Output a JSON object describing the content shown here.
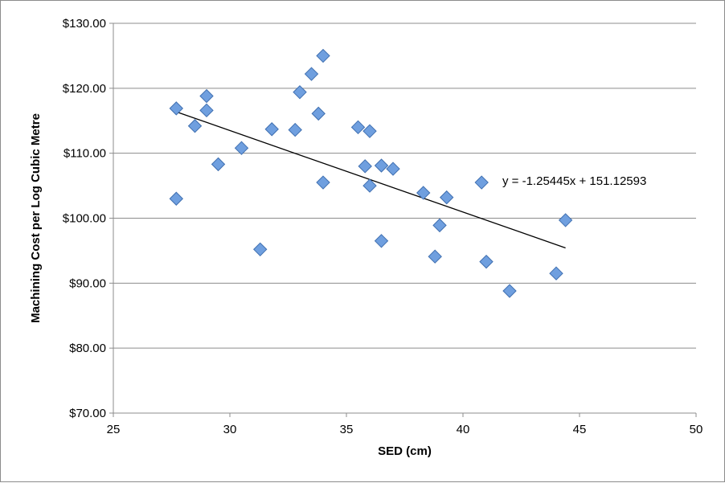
{
  "chart_data": {
    "type": "scatter",
    "title": "",
    "xlabel": "SED (cm)",
    "ylabel": "Machining Cost per Log Cubic Metre",
    "xlim": [
      25,
      50
    ],
    "ylim": [
      70,
      130
    ],
    "x_ticks": [
      25,
      30,
      35,
      40,
      45,
      50
    ],
    "x_tick_labels": [
      "25",
      "30",
      "35",
      "40",
      "45",
      "50"
    ],
    "y_ticks": [
      70,
      80,
      90,
      100,
      110,
      120,
      130
    ],
    "y_tick_labels": [
      "$70.00",
      "$80.00",
      "$90.00",
      "$100.00",
      "$110.00",
      "$120.00",
      "$130.00"
    ],
    "grid": "horizontal",
    "legend": "none",
    "marker": "diamond",
    "marker_color": "#6f9fdf",
    "marker_edge_color": "#3f6fb0",
    "points": [
      {
        "x": 27.7,
        "y": 116.9
      },
      {
        "x": 27.7,
        "y": 103.0
      },
      {
        "x": 28.5,
        "y": 114.2
      },
      {
        "x": 29.0,
        "y": 118.8
      },
      {
        "x": 29.0,
        "y": 116.6
      },
      {
        "x": 29.5,
        "y": 108.3
      },
      {
        "x": 30.5,
        "y": 110.8
      },
      {
        "x": 31.3,
        "y": 95.2
      },
      {
        "x": 31.8,
        "y": 113.7
      },
      {
        "x": 32.8,
        "y": 113.6
      },
      {
        "x": 33.0,
        "y": 119.4
      },
      {
        "x": 33.5,
        "y": 122.2
      },
      {
        "x": 33.8,
        "y": 116.1
      },
      {
        "x": 34.0,
        "y": 125.0
      },
      {
        "x": 34.0,
        "y": 105.5
      },
      {
        "x": 35.5,
        "y": 114.0
      },
      {
        "x": 35.8,
        "y": 108.0
      },
      {
        "x": 36.0,
        "y": 113.4
      },
      {
        "x": 36.0,
        "y": 105.0
      },
      {
        "x": 36.5,
        "y": 108.1
      },
      {
        "x": 36.5,
        "y": 96.5
      },
      {
        "x": 37.0,
        "y": 107.6
      },
      {
        "x": 38.3,
        "y": 103.9
      },
      {
        "x": 38.8,
        "y": 94.1
      },
      {
        "x": 39.0,
        "y": 98.9
      },
      {
        "x": 39.3,
        "y": 103.2
      },
      {
        "x": 40.8,
        "y": 105.5
      },
      {
        "x": 41.0,
        "y": 93.3
      },
      {
        "x": 42.0,
        "y": 88.8
      },
      {
        "x": 44.0,
        "y": 91.5
      },
      {
        "x": 44.4,
        "y": 99.7
      }
    ],
    "trendline": {
      "slope": -1.25445,
      "intercept": 151.12593,
      "x_start": 27.7,
      "x_end": 44.4,
      "color": "#000000",
      "equation_label": "y = -1.25445x + 151.12593"
    }
  }
}
